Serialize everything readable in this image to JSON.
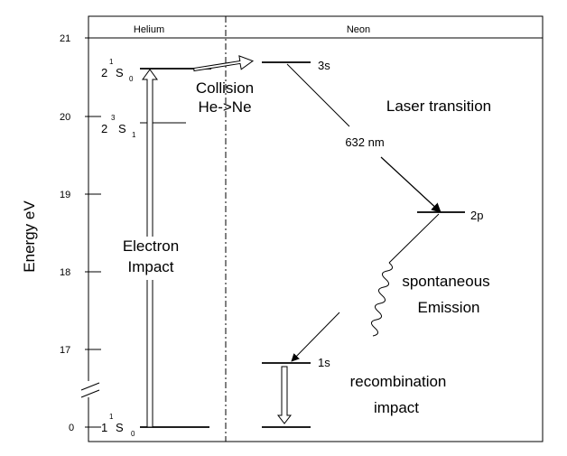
{
  "y_axis": {
    "label": "Energy eV",
    "ticks": [
      "21",
      "20",
      "19",
      "18",
      "17",
      "0"
    ]
  },
  "headers": {
    "helium": "Helium",
    "neon": "Neon"
  },
  "helium_levels": {
    "upper": {
      "n": "2",
      "mult": "1",
      "sym": "S",
      "sub": "0"
    },
    "triplet": {
      "n": "2",
      "mult": "3",
      "sym": "S",
      "sub": "1"
    },
    "ground": {
      "n": "1",
      "mult": "1",
      "sym": "S",
      "sub": "0"
    }
  },
  "neon_levels": {
    "upper": "3s",
    "middle": "2p",
    "lower": "1s"
  },
  "labels": {
    "collision_line1": "Collision",
    "collision_line2": "He->Ne",
    "laser_transition": "Laser transition",
    "wavelength": "632 nm",
    "electron_line1": "Electron",
    "electron_line2": "Impact",
    "spontaneous_line1": "spontaneous",
    "spontaneous_line2": "Emission",
    "recombination_line1": "recombination",
    "recombination_line2": "impact"
  }
}
